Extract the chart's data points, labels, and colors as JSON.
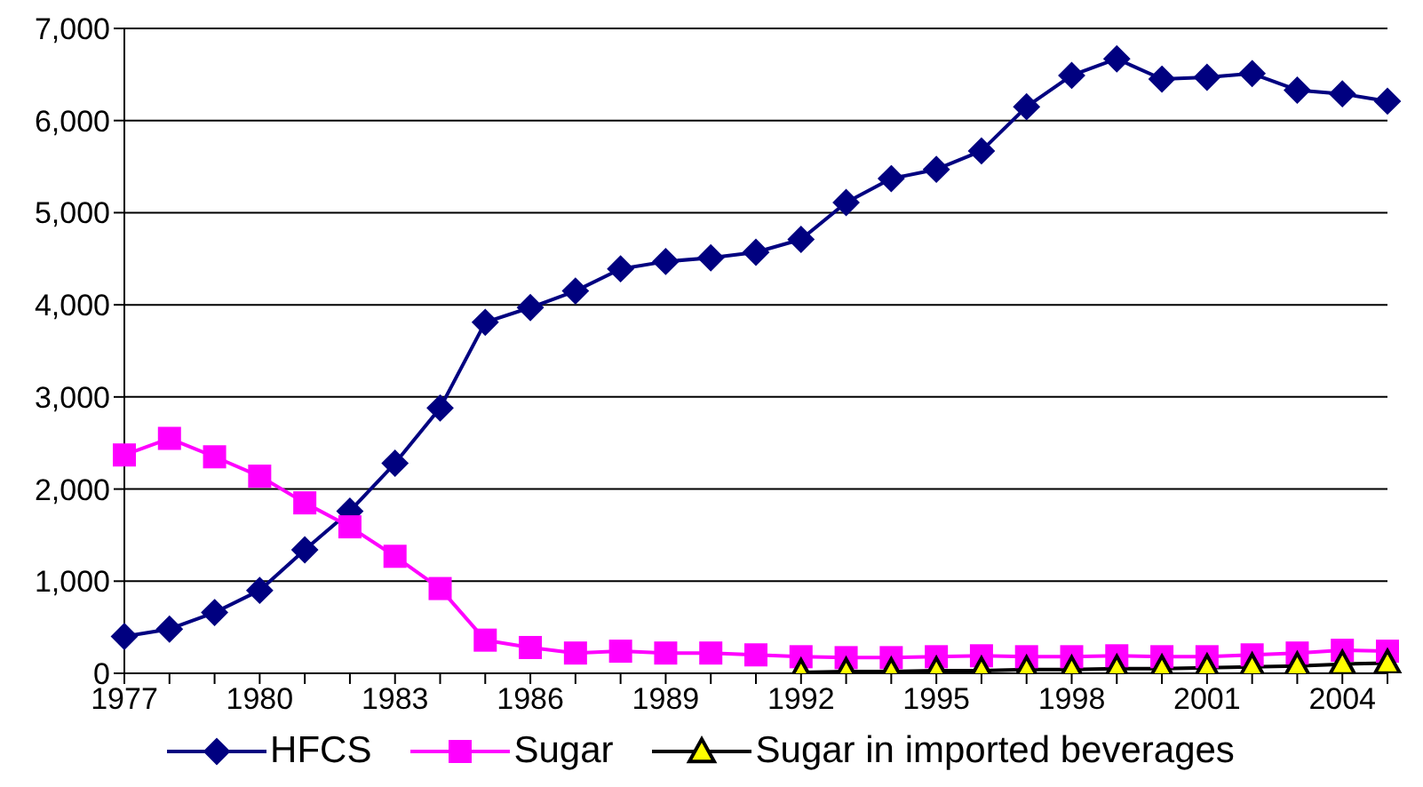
{
  "chart_data": {
    "type": "line",
    "categories": [
      "1977",
      null,
      null,
      "1980",
      null,
      null,
      "1983",
      null,
      null,
      "1986",
      null,
      null,
      "1989",
      null,
      null,
      "1992",
      null,
      null,
      "1995",
      null,
      null,
      "1998",
      null,
      null,
      "2001",
      null,
      null,
      "2004",
      null
    ],
    "series": [
      {
        "name": "HFCS",
        "color": "#000080",
        "marker": "diamond",
        "values": [
          400,
          480,
          660,
          900,
          1340,
          1760,
          2280,
          2880,
          3810,
          3970,
          4150,
          4390,
          4470,
          4510,
          4570,
          4710,
          5110,
          5370,
          5470,
          5670,
          6150,
          6490,
          6670,
          6450,
          6470,
          6510,
          6330,
          6290,
          6210
        ]
      },
      {
        "name": "Sugar",
        "color": "#ff00ff",
        "marker": "square",
        "values": [
          2370,
          2550,
          2350,
          2140,
          1850,
          1590,
          1270,
          920,
          360,
          280,
          220,
          240,
          220,
          220,
          200,
          180,
          170,
          170,
          180,
          190,
          180,
          180,
          190,
          180,
          180,
          200,
          220,
          250,
          240
        ]
      },
      {
        "name": "Sugar in imported beverages",
        "color": "#000000",
        "marker": "triangle",
        "values": [
          null,
          null,
          null,
          null,
          null,
          null,
          null,
          null,
          null,
          null,
          null,
          null,
          null,
          null,
          null,
          10,
          20,
          20,
          30,
          30,
          40,
          40,
          50,
          50,
          60,
          70,
          80,
          100,
          110
        ]
      }
    ],
    "ylim": [
      0,
      7000
    ],
    "yticks": [
      0,
      {
        "value": 1000,
        "label": "1,000"
      },
      {
        "value": 2000,
        "label": "2,000"
      },
      {
        "value": 3000,
        "label": "3,000"
      },
      {
        "value": 4000,
        "label": "4,000"
      },
      {
        "value": 5000,
        "label": "5,000"
      },
      {
        "value": 6000,
        "label": "6,000"
      },
      {
        "value": 7000,
        "label": "7,000"
      }
    ],
    "grid": "y",
    "legend": "bottom",
    "line_style": "solid"
  }
}
